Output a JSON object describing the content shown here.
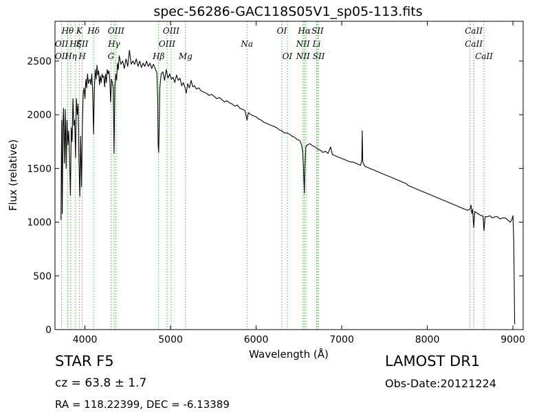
{
  "chart_data": {
    "type": "line",
    "title": "spec-56286-GAC118S05V1_sp05-113.fits",
    "xlabel": "Wavelength (Å)",
    "ylabel": "Flux (relative)",
    "xlim": [
      3650,
      9120
    ],
    "ylim": [
      0,
      2870
    ],
    "x_ticks": [
      4000,
      5000,
      6000,
      7000,
      8000,
      9000
    ],
    "y_ticks": [
      0,
      500,
      1000,
      1500,
      2000,
      2500
    ],
    "grid": false,
    "series": [
      {
        "color": "#000000",
        "points": [
          [
            3720,
            1020
          ],
          [
            3728,
            1950
          ],
          [
            3735,
            1080
          ],
          [
            3742,
            1900
          ],
          [
            3750,
            2060
          ],
          [
            3760,
            1550
          ],
          [
            3770,
            2050
          ],
          [
            3780,
            1500
          ],
          [
            3790,
            1950
          ],
          [
            3800,
            1720
          ],
          [
            3810,
            1850
          ],
          [
            3820,
            1620
          ],
          [
            3830,
            1250
          ],
          [
            3840,
            1880
          ],
          [
            3850,
            1750
          ],
          [
            3860,
            2150
          ],
          [
            3870,
            1900
          ],
          [
            3880,
            1950
          ],
          [
            3890,
            1600
          ],
          [
            3900,
            2150
          ],
          [
            3910,
            2000
          ],
          [
            3920,
            2100
          ],
          [
            3930,
            1560
          ],
          [
            3940,
            1240
          ],
          [
            3950,
            1800
          ],
          [
            3960,
            1330
          ],
          [
            3970,
            1900
          ],
          [
            3980,
            2200
          ],
          [
            3990,
            2250
          ],
          [
            4000,
            2150
          ],
          [
            4010,
            2330
          ],
          [
            4020,
            2250
          ],
          [
            4030,
            2380
          ],
          [
            4040,
            2290
          ],
          [
            4050,
            2320
          ],
          [
            4060,
            2330
          ],
          [
            4070,
            2280
          ],
          [
            4080,
            2380
          ],
          [
            4090,
            2220
          ],
          [
            4101,
            1820
          ],
          [
            4110,
            2240
          ],
          [
            4120,
            2420
          ],
          [
            4130,
            2330
          ],
          [
            4140,
            2460
          ],
          [
            4150,
            2370
          ],
          [
            4160,
            2410
          ],
          [
            4170,
            2280
          ],
          [
            4180,
            2360
          ],
          [
            4190,
            2300
          ],
          [
            4200,
            2380
          ],
          [
            4210,
            2350
          ],
          [
            4220,
            2360
          ],
          [
            4230,
            2260
          ],
          [
            4240,
            2380
          ],
          [
            4250,
            2300
          ],
          [
            4260,
            2420
          ],
          [
            4270,
            2380
          ],
          [
            4280,
            2410
          ],
          [
            4290,
            2330
          ],
          [
            4300,
            2120
          ],
          [
            4310,
            2330
          ],
          [
            4320,
            2300
          ],
          [
            4330,
            2250
          ],
          [
            4340,
            1640
          ],
          [
            4350,
            2270
          ],
          [
            4360,
            2380
          ],
          [
            4370,
            2320
          ],
          [
            4380,
            2480
          ],
          [
            4390,
            2420
          ],
          [
            4400,
            2550
          ],
          [
            4420,
            2470
          ],
          [
            4440,
            2500
          ],
          [
            4460,
            2430
          ],
          [
            4480,
            2520
          ],
          [
            4500,
            2450
          ],
          [
            4520,
            2600
          ],
          [
            4540,
            2470
          ],
          [
            4560,
            2500
          ],
          [
            4580,
            2470
          ],
          [
            4600,
            2520
          ],
          [
            4620,
            2450
          ],
          [
            4640,
            2500
          ],
          [
            4660,
            2440
          ],
          [
            4680,
            2480
          ],
          [
            4700,
            2450
          ],
          [
            4720,
            2500
          ],
          [
            4740,
            2450
          ],
          [
            4760,
            2480
          ],
          [
            4780,
            2430
          ],
          [
            4800,
            2470
          ],
          [
            4820,
            2430
          ],
          [
            4840,
            2390
          ],
          [
            4850,
            2150
          ],
          [
            4855,
            1720
          ],
          [
            4861,
            1650
          ],
          [
            4868,
            1900
          ],
          [
            4875,
            2250
          ],
          [
            4890,
            2380
          ],
          [
            4910,
            2400
          ],
          [
            4930,
            2320
          ],
          [
            4950,
            2420
          ],
          [
            4970,
            2340
          ],
          [
            4990,
            2380
          ],
          [
            5010,
            2330
          ],
          [
            5030,
            2350
          ],
          [
            5050,
            2300
          ],
          [
            5070,
            2370
          ],
          [
            5090,
            2320
          ],
          [
            5110,
            2340
          ],
          [
            5130,
            2270
          ],
          [
            5150,
            2300
          ],
          [
            5170,
            2250
          ],
          [
            5183,
            2200
          ],
          [
            5200,
            2290
          ],
          [
            5220,
            2250
          ],
          [
            5240,
            2320
          ],
          [
            5260,
            2260
          ],
          [
            5280,
            2270
          ],
          [
            5300,
            2240
          ],
          [
            5330,
            2250
          ],
          [
            5360,
            2220
          ],
          [
            5390,
            2210
          ],
          [
            5420,
            2200
          ],
          [
            5450,
            2180
          ],
          [
            5480,
            2190
          ],
          [
            5510,
            2170
          ],
          [
            5540,
            2150
          ],
          [
            5570,
            2160
          ],
          [
            5600,
            2140
          ],
          [
            5630,
            2120
          ],
          [
            5660,
            2130
          ],
          [
            5690,
            2110
          ],
          [
            5720,
            2100
          ],
          [
            5750,
            2080
          ],
          [
            5780,
            2090
          ],
          [
            5810,
            2060
          ],
          [
            5840,
            2050
          ],
          [
            5870,
            2040
          ],
          [
            5893,
            1950
          ],
          [
            5910,
            2020
          ],
          [
            5940,
            2000
          ],
          [
            5970,
            1990
          ],
          [
            6000,
            1980
          ],
          [
            6030,
            1960
          ],
          [
            6060,
            1950
          ],
          [
            6090,
            1930
          ],
          [
            6120,
            1920
          ],
          [
            6150,
            1910
          ],
          [
            6180,
            1900
          ],
          [
            6210,
            1890
          ],
          [
            6240,
            1880
          ],
          [
            6270,
            1860
          ],
          [
            6300,
            1850
          ],
          [
            6330,
            1830
          ],
          [
            6360,
            1830
          ],
          [
            6390,
            1820
          ],
          [
            6420,
            1800
          ],
          [
            6450,
            1790
          ],
          [
            6480,
            1770
          ],
          [
            6510,
            1760
          ],
          [
            6530,
            1720
          ],
          [
            6545,
            1650
          ],
          [
            6555,
            1450
          ],
          [
            6563,
            1270
          ],
          [
            6570,
            1500
          ],
          [
            6580,
            1700
          ],
          [
            6600,
            1720
          ],
          [
            6630,
            1730
          ],
          [
            6660,
            1710
          ],
          [
            6690,
            1700
          ],
          [
            6720,
            1680
          ],
          [
            6750,
            1670
          ],
          [
            6780,
            1650
          ],
          [
            6810,
            1660
          ],
          [
            6840,
            1640
          ],
          [
            6870,
            1700
          ],
          [
            6890,
            1630
          ],
          [
            6920,
            1620
          ],
          [
            6950,
            1610
          ],
          [
            6980,
            1600
          ],
          [
            7010,
            1590
          ],
          [
            7040,
            1580
          ],
          [
            7070,
            1570
          ],
          [
            7100,
            1560
          ],
          [
            7130,
            1560
          ],
          [
            7160,
            1550
          ],
          [
            7190,
            1540
          ],
          [
            7220,
            1530
          ],
          [
            7235,
            1580
          ],
          [
            7240,
            1850
          ],
          [
            7245,
            1560
          ],
          [
            7270,
            1520
          ],
          [
            7300,
            1510
          ],
          [
            7330,
            1500
          ],
          [
            7360,
            1490
          ],
          [
            7390,
            1480
          ],
          [
            7420,
            1470
          ],
          [
            7450,
            1460
          ],
          [
            7480,
            1450
          ],
          [
            7510,
            1440
          ],
          [
            7540,
            1430
          ],
          [
            7570,
            1420
          ],
          [
            7600,
            1410
          ],
          [
            7630,
            1400
          ],
          [
            7660,
            1390
          ],
          [
            7690,
            1380
          ],
          [
            7720,
            1370
          ],
          [
            7750,
            1360
          ],
          [
            7780,
            1340
          ],
          [
            7810,
            1330
          ],
          [
            7840,
            1320
          ],
          [
            7870,
            1310
          ],
          [
            7900,
            1300
          ],
          [
            7930,
            1290
          ],
          [
            7960,
            1280
          ],
          [
            7990,
            1270
          ],
          [
            8020,
            1260
          ],
          [
            8050,
            1250
          ],
          [
            8080,
            1240
          ],
          [
            8110,
            1230
          ],
          [
            8140,
            1220
          ],
          [
            8170,
            1210
          ],
          [
            8200,
            1200
          ],
          [
            8230,
            1190
          ],
          [
            8260,
            1180
          ],
          [
            8290,
            1170
          ],
          [
            8320,
            1160
          ],
          [
            8350,
            1150
          ],
          [
            8380,
            1140
          ],
          [
            8410,
            1130
          ],
          [
            8440,
            1120
          ],
          [
            8470,
            1110
          ],
          [
            8498,
            1120
          ],
          [
            8510,
            1160
          ],
          [
            8520,
            1080
          ],
          [
            8530,
            1120
          ],
          [
            8542,
            950
          ],
          [
            8555,
            1100
          ],
          [
            8570,
            1090
          ],
          [
            8590,
            1080
          ],
          [
            8610,
            1070
          ],
          [
            8630,
            1060
          ],
          [
            8650,
            1060
          ],
          [
            8662,
            920
          ],
          [
            8675,
            1050
          ],
          [
            8700,
            1050
          ],
          [
            8730,
            1060
          ],
          [
            8760,
            1040
          ],
          [
            8790,
            1050
          ],
          [
            8820,
            1050
          ],
          [
            8850,
            1030
          ],
          [
            8880,
            1040
          ],
          [
            8910,
            1040
          ],
          [
            8940,
            1020
          ],
          [
            8970,
            1000
          ],
          [
            8990,
            1030
          ],
          [
            9000,
            1060
          ],
          [
            9010,
            820
          ],
          [
            9020,
            50
          ]
        ]
      }
    ]
  },
  "lines": [
    {
      "w": 3727,
      "t": [
        {
          "s": "OII",
          "row": 1
        },
        {
          "s": "OII",
          "row": 2
        }
      ]
    },
    {
      "w": 3798,
      "t": [
        {
          "s": "Hθ",
          "row": 0
        }
      ]
    },
    {
      "w": 3835,
      "t": [
        {
          "s": "Hη",
          "row": 2
        }
      ]
    },
    {
      "w": 3889,
      "t": [
        {
          "s": "Hζ",
          "row": 1
        }
      ]
    },
    {
      "w": 3934,
      "t": [
        {
          "s": "K",
          "row": 0
        }
      ]
    },
    {
      "w": 3968,
      "t": [
        {
          "s": "SII",
          "row": 1
        },
        {
          "s": "H",
          "row": 2
        }
      ]
    },
    {
      "w": 4101,
      "t": [
        {
          "s": "Hδ",
          "row": 0
        }
      ]
    },
    {
      "w": 4304,
      "t": [
        {
          "s": "G",
          "row": 2
        }
      ]
    },
    {
      "w": 4340,
      "t": [
        {
          "s": "Hγ",
          "row": 1
        }
      ]
    },
    {
      "w": 4363,
      "t": [
        {
          "s": "OIII",
          "row": 0
        }
      ]
    },
    {
      "w": 4861,
      "t": [
        {
          "s": "Hβ",
          "row": 2
        }
      ]
    },
    {
      "w": 4959,
      "t": [
        {
          "s": "OIII",
          "row": 1
        }
      ]
    },
    {
      "w": 5007,
      "t": [
        {
          "s": "OIII",
          "row": 0
        }
      ]
    },
    {
      "w": 5175,
      "t": [
        {
          "s": "Mg",
          "row": 2
        }
      ]
    },
    {
      "w": 5893,
      "t": [
        {
          "s": "Na",
          "row": 1
        }
      ]
    },
    {
      "w": 6300,
      "t": [
        {
          "s": "OI",
          "row": 0
        }
      ]
    },
    {
      "w": 6364,
      "t": [
        {
          "s": "OI",
          "row": 2
        }
      ]
    },
    {
      "w": 6548,
      "t": [
        {
          "s": "NII",
          "row": 1
        },
        {
          "s": "NII",
          "row": 2
        }
      ]
    },
    {
      "w": 6563,
      "t": [
        {
          "s": "Hα",
          "row": 0
        }
      ]
    },
    {
      "w": 6583,
      "t": [
        {
          "s": "",
          "row": 1
        }
      ]
    },
    {
      "w": 6707,
      "t": [
        {
          "s": "Li",
          "row": 1
        }
      ]
    },
    {
      "w": 6717,
      "t": [
        {
          "s": "SII",
          "row": 0
        }
      ]
    },
    {
      "w": 6731,
      "t": [
        {
          "s": "SII",
          "row": 2
        }
      ]
    },
    {
      "w": 8498,
      "t": [
        {
          "s": "",
          "row": 0
        }
      ]
    },
    {
      "w": 8542,
      "t": [
        {
          "s": "CaII",
          "row": 0
        },
        {
          "s": "CaII",
          "row": 1
        }
      ]
    },
    {
      "w": 8662,
      "t": [
        {
          "s": "CaII",
          "row": 2
        }
      ]
    }
  ],
  "footer": {
    "object_class": "STAR   F5",
    "survey": "LAMOST DR1",
    "redshift": "cz = 63.8  ± 1.7",
    "obs_date": "Obs-Date:20121224",
    "coords": "RA = 118.22399, DEC = -6.13389"
  },
  "colors": {
    "spectrum": "#000000",
    "line_markers": "#33bb33",
    "frame": "#000000"
  }
}
